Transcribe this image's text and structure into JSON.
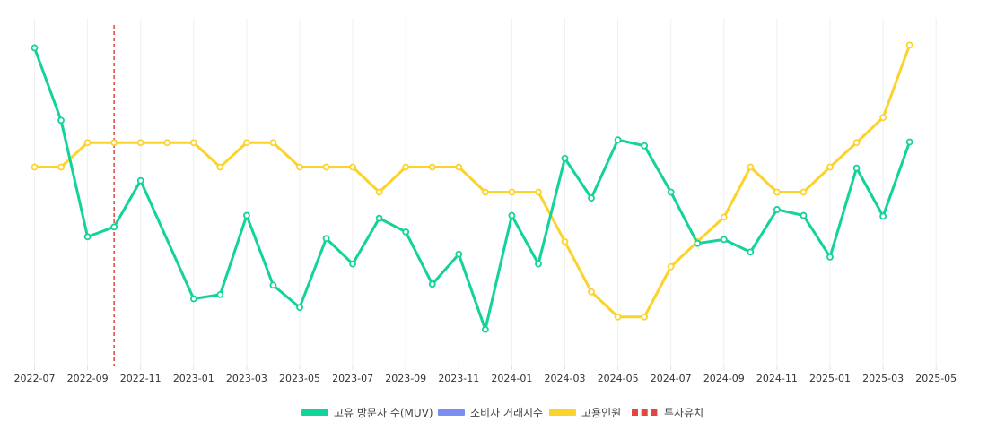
{
  "chart_data": {
    "type": "line",
    "title": "",
    "xlabel": "",
    "ylabel": "",
    "ylim": [
      0,
      100
    ],
    "grid": true,
    "x_ticks": [
      "2022-07",
      "2022-09",
      "2022-11",
      "2023-01",
      "2023-03",
      "2023-05",
      "2023-07",
      "2023-09",
      "2023-11",
      "2024-01",
      "2024-03",
      "2024-05",
      "2024-07",
      "2024-09",
      "2024-11",
      "2025-01",
      "2025-03",
      "2025-05"
    ],
    "months": [
      "2022-07",
      "2022-08",
      "2022-09",
      "2022-10",
      "2022-11",
      "2022-12",
      "2023-01",
      "2023-02",
      "2023-03",
      "2023-04",
      "2023-05",
      "2023-06",
      "2023-07",
      "2023-08",
      "2023-09",
      "2023-10",
      "2023-11",
      "2023-12",
      "2024-01",
      "2024-02",
      "2024-03",
      "2024-04",
      "2024-05",
      "2024-06",
      "2024-07",
      "2024-08",
      "2024-09",
      "2024-10",
      "2024-11",
      "2024-12",
      "2025-01",
      "2025-02",
      "2025-03",
      "2025-04"
    ],
    "series": [
      {
        "name": "고유 방문자 수(MUV)",
        "color": "#12d39a",
        "values": [
          91.4,
          70.6,
          37.2,
          40.0,
          53.3,
          null,
          19.4,
          20.6,
          43.3,
          23.3,
          16.9,
          36.7,
          29.4,
          42.5,
          38.6,
          23.6,
          32.2,
          10.6,
          43.3,
          29.4,
          59.7,
          48.3,
          65.0,
          63.3,
          50.0,
          35.3,
          36.4,
          32.8,
          45.0,
          43.3,
          31.4,
          56.9,
          43.1,
          64.4
        ]
      },
      {
        "name": "소비자 거래지수",
        "color": "#7b8cf2",
        "values": []
      },
      {
        "name": "고용인원",
        "color": "#fcd32c",
        "values": [
          57.2,
          57.2,
          64.2,
          64.2,
          64.2,
          64.2,
          64.2,
          57.2,
          64.2,
          64.2,
          57.2,
          57.2,
          57.2,
          50.0,
          57.2,
          57.2,
          57.2,
          50.0,
          50.0,
          50.0,
          35.8,
          21.4,
          14.2,
          14.2,
          28.6,
          35.8,
          42.8,
          57.2,
          50.0,
          50.0,
          57.2,
          64.2,
          71.4,
          92.2
        ]
      }
    ],
    "annotation": {
      "name": "투자유치",
      "color": "#e0473f",
      "x": "2022-10",
      "style": "dashed"
    },
    "legend": [
      {
        "label": "고유 방문자 수(MUV)",
        "color": "#12d39a",
        "style": "solid"
      },
      {
        "label": "소비자 거래지수",
        "color": "#7b8cf2",
        "style": "solid"
      },
      {
        "label": "고용인원",
        "color": "#fcd32c",
        "style": "solid"
      },
      {
        "label": "투자유치",
        "color": "#e0473f",
        "style": "dashed"
      }
    ],
    "legend_position": "bottom"
  }
}
